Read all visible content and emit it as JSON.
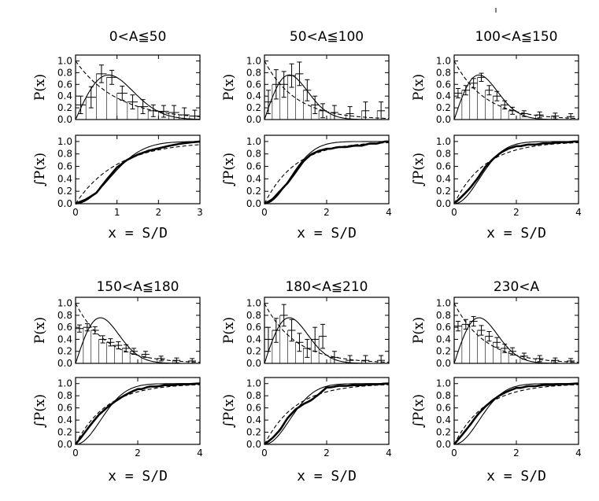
{
  "chart_data": {
    "type": "line",
    "layout": "3 columns x 2 rows of panel pairs",
    "x_label": "x = S/D",
    "y_label_top": "P(x)",
    "y_label_bottom": "∫P(x)",
    "y_ticks": [
      "0.0",
      "0.2",
      "0.4",
      "0.6",
      "0.8",
      "1.0"
    ],
    "panels": [
      {
        "title": "0<A≦50",
        "xlim": [
          0,
          3
        ],
        "x_ticks": [
          "0",
          "1",
          "2",
          "3"
        ],
        "hist_x": [
          0.125,
          0.375,
          0.625,
          0.875,
          1.125,
          1.375,
          1.625,
          1.875,
          2.125,
          2.375,
          2.625,
          2.875
        ],
        "hist_y": [
          0.25,
          0.38,
          0.78,
          0.72,
          0.45,
          0.3,
          0.22,
          0.15,
          0.14,
          0.12,
          0.08,
          0.06
        ],
        "hist_err": [
          0.15,
          0.18,
          0.15,
          0.12,
          0.12,
          0.12,
          0.12,
          0.1,
          0.1,
          0.12,
          0.12,
          0.1
        ]
      },
      {
        "title": "50<A≦100",
        "xlim": [
          0,
          4
        ],
        "x_ticks": [
          "0",
          "2",
          "4"
        ],
        "hist_x": [
          0.125,
          0.375,
          0.625,
          0.875,
          1.125,
          1.375,
          1.625,
          1.875,
          2.25,
          2.75,
          3.25,
          3.75
        ],
        "hist_y": [
          0.3,
          0.6,
          0.6,
          0.75,
          0.78,
          0.5,
          0.25,
          0.15,
          0.12,
          0.1,
          0.15,
          0.15
        ],
        "hist_err": [
          0.2,
          0.25,
          0.22,
          0.2,
          0.2,
          0.18,
          0.15,
          0.12,
          0.12,
          0.12,
          0.15,
          0.15
        ]
      },
      {
        "title": "100<A≦150",
        "xlim": [
          0,
          4
        ],
        "x_ticks": [
          "0",
          "2",
          "4"
        ],
        "hist_x": [
          0.125,
          0.375,
          0.625,
          0.875,
          1.125,
          1.375,
          1.625,
          1.875,
          2.25,
          2.75,
          3.25,
          3.75
        ],
        "hist_y": [
          0.45,
          0.5,
          0.62,
          0.72,
          0.5,
          0.4,
          0.25,
          0.15,
          0.1,
          0.08,
          0.06,
          0.05
        ],
        "hist_err": [
          0.08,
          0.08,
          0.08,
          0.07,
          0.08,
          0.08,
          0.07,
          0.06,
          0.05,
          0.05,
          0.05,
          0.05
        ]
      },
      {
        "title": "150<A≦180",
        "xlim": [
          0,
          4
        ],
        "x_ticks": [
          "0",
          "2",
          "4"
        ],
        "hist_x": [
          0.125,
          0.375,
          0.625,
          0.875,
          1.125,
          1.375,
          1.625,
          1.875,
          2.25,
          2.75,
          3.25,
          3.75
        ],
        "hist_y": [
          0.58,
          0.6,
          0.55,
          0.4,
          0.35,
          0.3,
          0.25,
          0.2,
          0.15,
          0.08,
          0.05,
          0.04
        ],
        "hist_err": [
          0.06,
          0.06,
          0.06,
          0.06,
          0.06,
          0.06,
          0.06,
          0.05,
          0.05,
          0.04,
          0.04,
          0.04
        ]
      },
      {
        "title": "180<A≦210",
        "xlim": [
          0,
          4
        ],
        "x_ticks": [
          "0",
          "2",
          "4"
        ],
        "hist_x": [
          0.125,
          0.375,
          0.625,
          0.875,
          1.125,
          1.375,
          1.625,
          1.875,
          2.25,
          2.75,
          3.25,
          3.75
        ],
        "hist_y": [
          0.4,
          0.55,
          0.8,
          0.55,
          0.35,
          0.25,
          0.4,
          0.45,
          0.1,
          0.05,
          0.05,
          0.05
        ],
        "hist_err": [
          0.2,
          0.2,
          0.18,
          0.18,
          0.15,
          0.15,
          0.2,
          0.2,
          0.1,
          0.08,
          0.08,
          0.08
        ]
      },
      {
        "title": "230<A",
        "xlim": [
          0,
          4
        ],
        "x_ticks": [
          "0",
          "2",
          "4"
        ],
        "hist_x": [
          0.125,
          0.375,
          0.625,
          0.875,
          1.125,
          1.375,
          1.625,
          1.875,
          2.25,
          2.75,
          3.25,
          3.75
        ],
        "hist_y": [
          0.62,
          0.65,
          0.7,
          0.55,
          0.45,
          0.35,
          0.25,
          0.2,
          0.12,
          0.08,
          0.05,
          0.04
        ],
        "hist_err": [
          0.08,
          0.08,
          0.08,
          0.08,
          0.08,
          0.08,
          0.07,
          0.06,
          0.05,
          0.05,
          0.04,
          0.04
        ]
      }
    ]
  }
}
